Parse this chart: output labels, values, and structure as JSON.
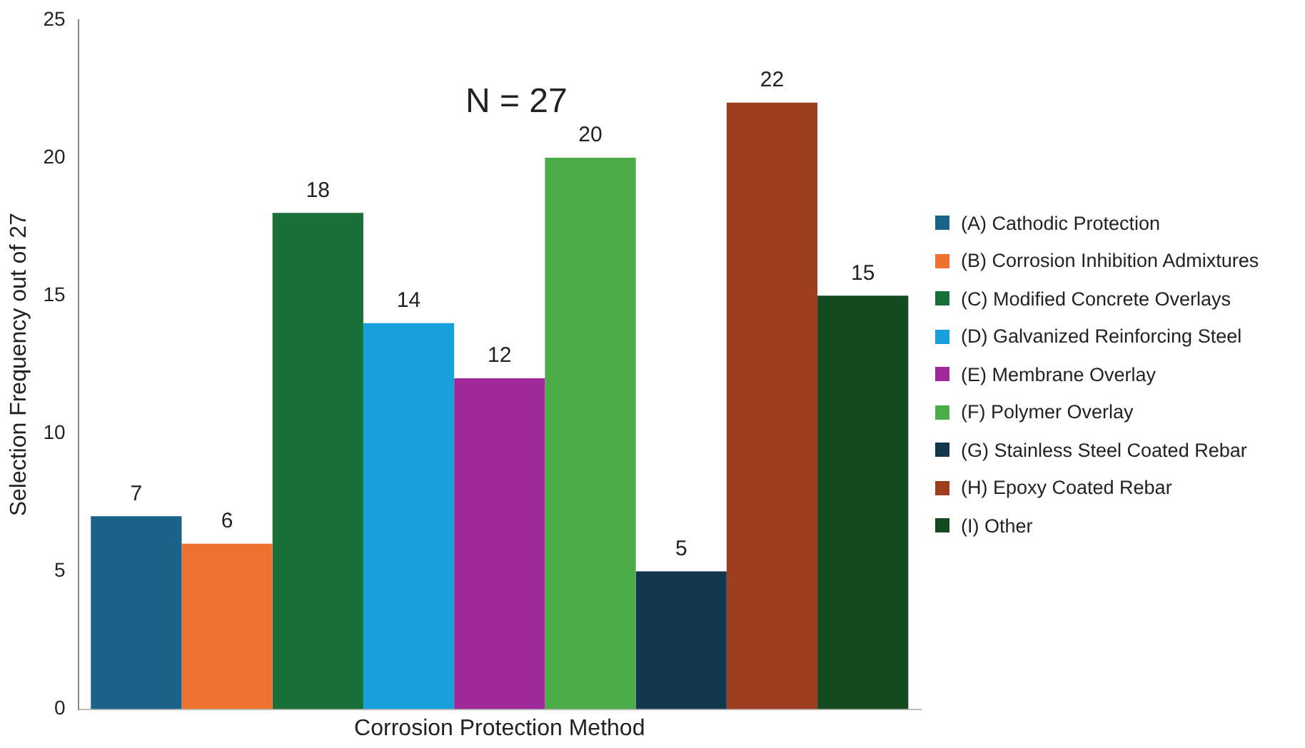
{
  "chart_data": {
    "type": "bar",
    "xlabel": "Corrosion Protection Method",
    "ylabel": "Selection Frequency out of 27",
    "annotations": [
      "N = 27"
    ],
    "categories": [
      null
    ],
    "series": [
      {
        "name": "(A) Cathodic Protection",
        "color": "#1b6289",
        "values": [
          7
        ]
      },
      {
        "name": "(B) Corrosion Inhibition Admixtures",
        "color": "#ed7230",
        "values": [
          6
        ]
      },
      {
        "name": "(C) Modified Concrete Overlays",
        "color": "#187038",
        "values": [
          18
        ]
      },
      {
        "name": "(D) Galvanized Reinforcing Steel",
        "color": "#17a0dc",
        "values": [
          14
        ]
      },
      {
        "name": "(E) Membrane Overlay",
        "color": "#a0299a",
        "values": [
          12
        ]
      },
      {
        "name": "(F) Polymer Overlay",
        "color": "#4cac47",
        "values": [
          20
        ]
      },
      {
        "name": "(G) Stainless Steel Coated Rebar",
        "color": "#12374d",
        "values": [
          5
        ]
      },
      {
        "name": "(H) Epoxy Coated Rebar",
        "color": "#9c3e1f",
        "values": [
          22
        ]
      },
      {
        "name": "(I) Other",
        "color": "#134a1f",
        "values": [
          15
        ]
      }
    ],
    "ylim": [
      0,
      25
    ],
    "yticks": [
      0,
      5,
      10,
      15,
      20,
      25
    ],
    "grid": false,
    "legend": "right",
    "data_labels": true
  }
}
